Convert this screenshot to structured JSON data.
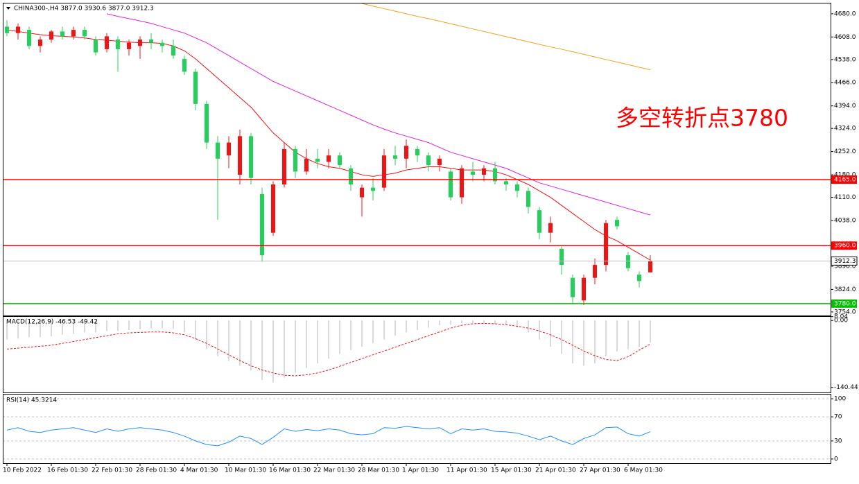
{
  "chart_data": [
    {
      "type": "candlestick",
      "title": "CHINA300-,H4  3877.0 3930.6 3877.0 3912.3",
      "categories": [
        "10 Feb 2022",
        null,
        null,
        null,
        "16 Feb 01:30",
        null,
        null,
        null,
        "22 Feb 01:30",
        null,
        null,
        null,
        "28 Feb 01:30",
        null,
        null,
        null,
        "4 Mar 01:30",
        null,
        null,
        null,
        "10 Mar 01:30",
        null,
        null,
        null,
        "16 Mar 01:30",
        null,
        null,
        null,
        "22 Mar 01:30",
        null,
        null,
        null,
        "28 Mar 01:30",
        null,
        null,
        null,
        "1 Apr 01:30",
        null,
        null,
        null,
        "11 Apr 01:30",
        null,
        null,
        null,
        "15 Apr 01:30",
        null,
        null,
        null,
        "21 Apr 01:30",
        null,
        null,
        null,
        "27 Apr 01:30",
        null,
        null,
        null,
        "6 May 01:30",
        null,
        null
      ],
      "open": [
        4640,
        4620,
        4630,
        4580,
        4600,
        4625,
        4610,
        4630,
        4600,
        4570,
        4600,
        4570,
        4580,
        4600,
        4590,
        4580,
        4540,
        4500,
        4400,
        4280,
        4240,
        4180,
        4300,
        4120,
        4000,
        4150,
        4260,
        4190,
        4230,
        4220,
        4240,
        4200,
        4110,
        4140,
        4140,
        4240,
        4230,
        4260,
        4240,
        4210,
        4190,
        4110,
        4190,
        4180,
        4200,
        4160,
        4150,
        4130,
        4070,
        4000,
        3950,
        3860,
        3790,
        3860,
        3900,
        4040,
        3930,
        3870,
        3877
      ],
      "high": [
        4660,
        4650,
        4640,
        4610,
        4630,
        4640,
        4640,
        4640,
        4610,
        4620,
        4610,
        4600,
        4610,
        4620,
        4600,
        4600,
        4550,
        4510,
        4410,
        4300,
        4300,
        4320,
        4310,
        4140,
        4160,
        4280,
        4270,
        4260,
        4260,
        4260,
        4250,
        4210,
        4150,
        4170,
        4260,
        4270,
        4290,
        4270,
        4250,
        4240,
        4200,
        4210,
        4220,
        4210,
        4220,
        4170,
        4160,
        4140,
        4080,
        4050,
        3960,
        3870,
        3870,
        3920,
        4040,
        4050,
        3940,
        3880,
        3930.6
      ],
      "low": [
        4610,
        4600,
        4570,
        4560,
        4590,
        4600,
        4600,
        4600,
        4550,
        4560,
        4500,
        4550,
        4540,
        4570,
        4560,
        4540,
        4490,
        4380,
        4260,
        4040,
        4200,
        4150,
        4150,
        3910,
        3990,
        4140,
        4170,
        4180,
        4200,
        4200,
        4200,
        4130,
        4050,
        4100,
        4130,
        4210,
        4200,
        4220,
        4190,
        4190,
        4100,
        4090,
        4160,
        4160,
        4150,
        4130,
        4110,
        4060,
        3980,
        3970,
        3870,
        3780,
        3775,
        3840,
        3880,
        4010,
        3880,
        3830,
        3877
      ],
      "close": [
        4620,
        4640,
        4580,
        4600,
        4625,
        4610,
        4630,
        4610,
        4560,
        4610,
        4570,
        4590,
        4600,
        4590,
        4580,
        4550,
        4500,
        4400,
        4280,
        4230,
        4280,
        4300,
        4170,
        3930,
        4150,
        4260,
        4190,
        4230,
        4220,
        4240,
        4210,
        4150,
        4140,
        4130,
        4240,
        4230,
        4270,
        4240,
        4210,
        4230,
        4110,
        4200,
        4180,
        4200,
        4160,
        4150,
        4130,
        4080,
        4000,
        4030,
        3900,
        3800,
        3860,
        3900,
        4030,
        4020,
        3890,
        3850,
        3912.3
      ],
      "up_color": "#f01414",
      "down_color": "#22d05a",
      "lines": [
        {
          "color": "#ee1111",
          "values": [
            4630,
            4625,
            4620,
            4615,
            4612,
            4610,
            4608,
            4605,
            4600,
            4598,
            4595,
            4592,
            4590,
            4590,
            4588,
            4580,
            4565,
            4540,
            4510,
            4480,
            4450,
            4420,
            4390,
            4350,
            4310,
            4280,
            4250,
            4230,
            4215,
            4205,
            4200,
            4190,
            4180,
            4175,
            4180,
            4185,
            4195,
            4200,
            4205,
            4205,
            4200,
            4195,
            4195,
            4195,
            4190,
            4180,
            4165,
            4150,
            4130,
            4110,
            4085,
            4060,
            4035,
            4010,
            3990,
            3975,
            3955,
            3935,
            3915
          ]
        },
        {
          "color": "#e020e0",
          "values": [
            null,
            null,
            null,
            null,
            null,
            null,
            null,
            null,
            null,
            4680,
            4672,
            4665,
            4658,
            4650,
            4640,
            4630,
            4620,
            4605,
            4590,
            4570,
            4550,
            4530,
            4510,
            4490,
            4470,
            4455,
            4440,
            4425,
            4410,
            4395,
            4380,
            4365,
            4350,
            4335,
            4322,
            4310,
            4300,
            4290,
            4280,
            4265,
            4250,
            4240,
            4230,
            4220,
            4210,
            4200,
            4185,
            4170,
            4155,
            4145,
            4135,
            4125,
            4115,
            4105,
            4095,
            4085,
            4075,
            4065,
            4055
          ]
        },
        {
          "color": "#f5a020",
          "values": [
            null,
            null,
            null,
            null,
            null,
            null,
            null,
            null,
            null,
            null,
            null,
            null,
            null,
            null,
            null,
            null,
            null,
            null,
            null,
            null,
            null,
            null,
            null,
            null,
            null,
            null,
            null,
            null,
            null,
            null,
            null,
            null,
            4712,
            4704,
            4696,
            4688,
            4680,
            4672,
            4665,
            4657,
            4649,
            4641,
            4633,
            4625,
            4617,
            4609,
            4601,
            4593,
            4585,
            4577,
            4570,
            4562,
            4554,
            4546,
            4538,
            4530,
            4522,
            4514,
            4506
          ]
        }
      ],
      "levels": [
        {
          "value": 4165,
          "label": "4165.0",
          "color": "#ff0000"
        },
        {
          "value": 3960,
          "label": "3960.0",
          "color": "#ff0000"
        },
        {
          "value": 3780,
          "label": "3780.0",
          "color": "#00c000"
        }
      ],
      "current": {
        "value": 3912.3,
        "label": "3912.3",
        "color": "#c0c0c0"
      },
      "annotation": "多空转折点3780",
      "annotation_color": "#ff0000",
      "ylim": [
        3743,
        4712
      ],
      "yticks": [
        {
          "value": 4680,
          "label": "4680.0"
        },
        {
          "value": 4608,
          "label": "4608.0"
        },
        {
          "value": 4538,
          "label": "4538.0"
        },
        {
          "value": 4466,
          "label": "4466.0"
        },
        {
          "value": 4394,
          "label": "4394.0"
        },
        {
          "value": 4324,
          "label": "4324.0"
        },
        {
          "value": 4252,
          "label": "4252.0"
        },
        {
          "value": 4180,
          "label": "4180.0"
        },
        {
          "value": 4110,
          "label": "4110.0"
        },
        {
          "value": 4038,
          "label": "4038.0"
        },
        {
          "value": 3896,
          "label": "3896.0"
        },
        {
          "value": 3824,
          "label": "3824.0"
        },
        {
          "value": 3754,
          "label": "3754.0"
        }
      ]
    },
    {
      "type": "macd",
      "title": "MACD(12,26,9) -46.53 -49.42",
      "series": [
        {
          "color": "#b4b4b4",
          "values": [
            -40,
            -38,
            -35,
            -35,
            -33,
            -30,
            -28,
            -25,
            -25,
            -22,
            -22,
            -20,
            -18,
            -17,
            -16,
            -18,
            -25,
            -40,
            -60,
            -75,
            -85,
            -95,
            -105,
            -125,
            -130,
            -120,
            -110,
            -100,
            -90,
            -80,
            -70,
            -62,
            -55,
            -48,
            -40,
            -32,
            -25,
            -20,
            -15,
            -10,
            -8,
            -6,
            -5,
            -6,
            -8,
            -10,
            -15,
            -25,
            -40,
            -55,
            -70,
            -90,
            -95,
            -90,
            -75,
            -65,
            -60,
            -55,
            -46.53
          ]
        },
        {
          "color": "#ee1111",
          "values": [
            -60,
            -58,
            -56,
            -54,
            -52,
            -48,
            -44,
            -40,
            -36,
            -32,
            -28,
            -26,
            -25,
            -24,
            -24,
            -26,
            -30,
            -38,
            -48,
            -60,
            -72,
            -84,
            -95,
            -104,
            -110,
            -115,
            -116,
            -114,
            -110,
            -104,
            -96,
            -88,
            -80,
            -72,
            -64,
            -56,
            -48,
            -40,
            -32,
            -24,
            -16,
            -10,
            -7,
            -6,
            -7,
            -9,
            -12,
            -16,
            -22,
            -30,
            -40,
            -52,
            -64,
            -74,
            -82,
            -84,
            -76,
            -62,
            -49.42
          ]
        }
      ],
      "ylim": [
        -151,
        9
      ],
      "yticks": [
        {
          "value": 8.04,
          "label": "8.04"
        },
        {
          "value": 0,
          "label": "0.00"
        },
        {
          "value": -140.44,
          "label": "-140.44"
        }
      ]
    },
    {
      "type": "line",
      "title": "RSI(14) 45.3214",
      "series": [
        {
          "color": "#1e90ff",
          "values": [
            48,
            52,
            46,
            44,
            48,
            50,
            52,
            48,
            44,
            50,
            46,
            50,
            52,
            50,
            48,
            44,
            38,
            30,
            24,
            22,
            28,
            38,
            34,
            24,
            36,
            50,
            46,
            49,
            47,
            50,
            48,
            42,
            40,
            42,
            52,
            51,
            54,
            52,
            50,
            52,
            42,
            50,
            48,
            50,
            46,
            45,
            43,
            38,
            32,
            38,
            30,
            24,
            34,
            40,
            52,
            53,
            42,
            38,
            45.3214
          ]
        }
      ],
      "ylim": [
        -7,
        107
      ],
      "yticks": [
        100,
        70,
        30,
        0
      ]
    }
  ]
}
